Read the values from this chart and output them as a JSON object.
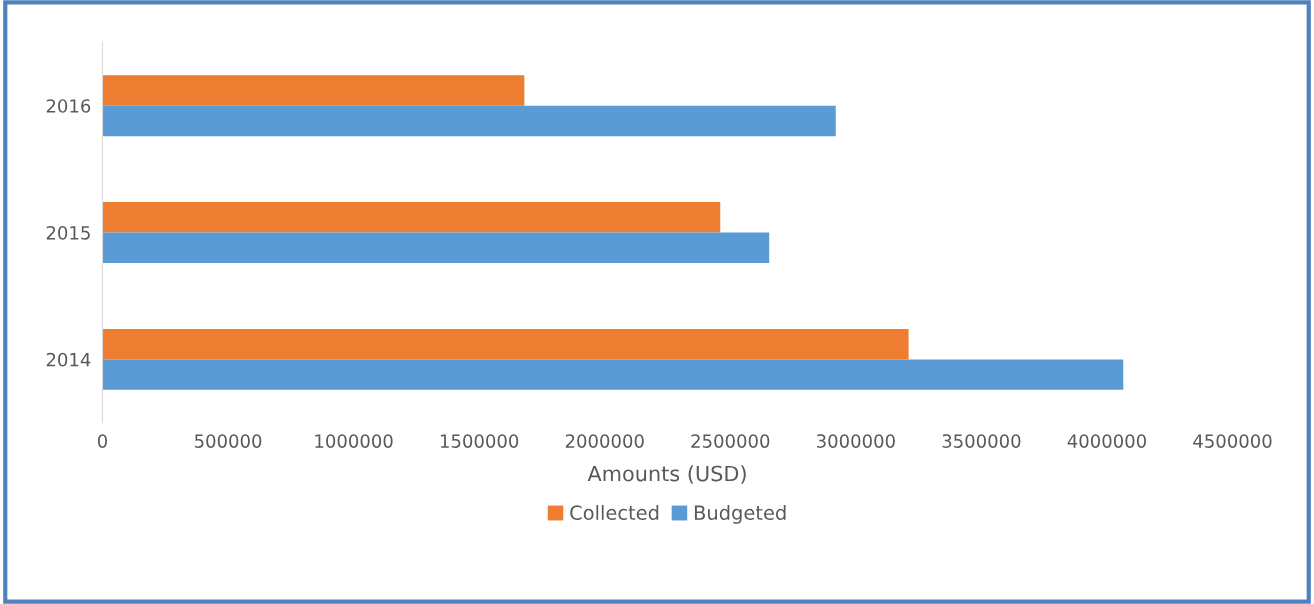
{
  "chart_data": {
    "type": "bar",
    "orientation": "horizontal",
    "categories": [
      "2016",
      "2015",
      "2014"
    ],
    "xlabel": "Amounts (USD)",
    "xlim": [
      0,
      4500000
    ],
    "xticks": [
      0,
      500000,
      1000000,
      1500000,
      2000000,
      2500000,
      3000000,
      3500000,
      4000000,
      4500000
    ],
    "grid": false,
    "legend": "bottom",
    "series": [
      {
        "name": "Collected",
        "color": "#ed7d31",
        "values": [
          1680000,
          2460000,
          3210000
        ]
      },
      {
        "name": "Budgeted",
        "color": "#5b9bd5",
        "values": [
          2920000,
          2655000,
          4065000
        ]
      }
    ]
  }
}
